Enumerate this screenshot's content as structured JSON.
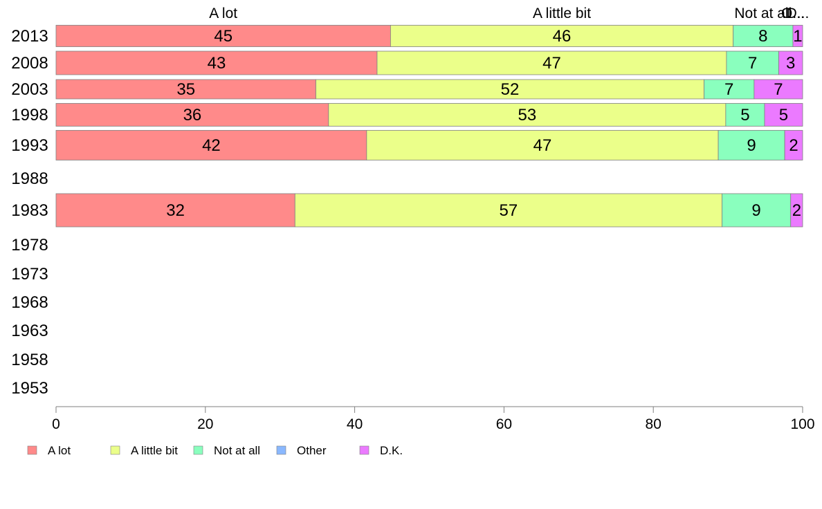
{
  "chart_data": {
    "type": "bar",
    "orientation": "horizontal",
    "stacked": true,
    "title": "",
    "xlabel": "",
    "ylabel": "",
    "xlim": [
      0,
      100
    ],
    "x_ticks": [
      "0",
      "20",
      "40",
      "60",
      "80",
      "100"
    ],
    "grid": false,
    "legend_position": "bottom-left",
    "categories": [
      "2013",
      "2008",
      "2003",
      "1998",
      "1993",
      "1988",
      "1983",
      "1978",
      "1973",
      "1968",
      "1963",
      "1958",
      "1953"
    ],
    "top_labels": [
      "A lot",
      "A little bit",
      "Not at all",
      "Other",
      "D.K."
    ],
    "top_labels_display": [
      "A lot",
      "A little bit",
      "Not at all",
      "O...",
      "D..."
    ],
    "series": [
      {
        "name": "A lot",
        "color": "#ff8a8a",
        "values": [
          44.8,
          43.0,
          34.8,
          36.5,
          41.6,
          null,
          32.0,
          null,
          null,
          null,
          null,
          null,
          null
        ],
        "labels": [
          "45",
          "43",
          "35",
          "36",
          "42",
          "",
          "32",
          "",
          "",
          "",
          "",
          "",
          ""
        ]
      },
      {
        "name": "A little bit",
        "color": "#ebff8a",
        "values": [
          45.9,
          46.8,
          52.0,
          53.2,
          47.1,
          null,
          57.2,
          null,
          null,
          null,
          null,
          null,
          null
        ],
        "labels": [
          "46",
          "47",
          "52",
          "53",
          "47",
          "",
          "57",
          "",
          "",
          "",
          "",
          "",
          ""
        ]
      },
      {
        "name": "Not at all",
        "color": "#8affbe",
        "values": [
          8.0,
          7.0,
          6.7,
          5.2,
          8.9,
          null,
          9.2,
          null,
          null,
          null,
          null,
          null,
          null
        ],
        "labels": [
          "8",
          "7",
          "7",
          "5",
          "9",
          "",
          "9",
          "",
          "",
          "",
          "",
          "",
          ""
        ]
      },
      {
        "name": "Other",
        "color": "#8ab8ff",
        "values": [
          0,
          0,
          0,
          0,
          0,
          null,
          0,
          null,
          null,
          null,
          null,
          null,
          null
        ],
        "labels": [
          "",
          "",
          "",
          "",
          "",
          "",
          "",
          "",
          "",
          "",
          "",
          "",
          ""
        ]
      },
      {
        "name": "D.K.",
        "color": "#eb7aff",
        "values": [
          1.3,
          3.2,
          6.5,
          5.1,
          2.4,
          null,
          1.6,
          null,
          null,
          null,
          null,
          null,
          null
        ],
        "labels": [
          "1",
          "3",
          "7",
          "5",
          "2",
          "",
          "2",
          "",
          "",
          "",
          "",
          "",
          ""
        ]
      }
    ]
  }
}
